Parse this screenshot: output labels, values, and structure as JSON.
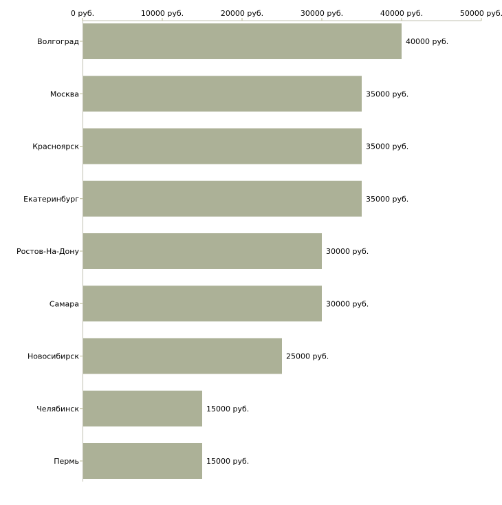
{
  "chart_data": {
    "type": "bar",
    "orientation": "horizontal",
    "title": "",
    "xlabel": "",
    "ylabel": "",
    "categories": [
      "Волгоград",
      "Москва",
      "Красноярск",
      "Екатеринбург",
      "Ростов-На-Дону",
      "Самара",
      "Новосибирск",
      "Челябинск",
      "Пермь"
    ],
    "values": [
      40000,
      35000,
      35000,
      35000,
      30000,
      30000,
      25000,
      15000,
      15000
    ],
    "value_labels": [
      "40000 руб.",
      "35000 руб.",
      "35000 руб.",
      "35000 руб.",
      "30000 руб.",
      "30000 руб.",
      "25000 руб.",
      "15000 руб.",
      "15000 руб."
    ],
    "xlim": [
      0,
      50000
    ],
    "ticks": [
      0,
      10000,
      20000,
      30000,
      40000,
      50000
    ],
    "tick_labels": [
      "0 руб.",
      "10000 руб.",
      "20000 руб.",
      "30000 руб.",
      "40000 руб.",
      "50000 руб."
    ],
    "axis_position": "top",
    "grid": false,
    "bar_color": "#acb197",
    "axis_color": "#c0c0b0"
  }
}
